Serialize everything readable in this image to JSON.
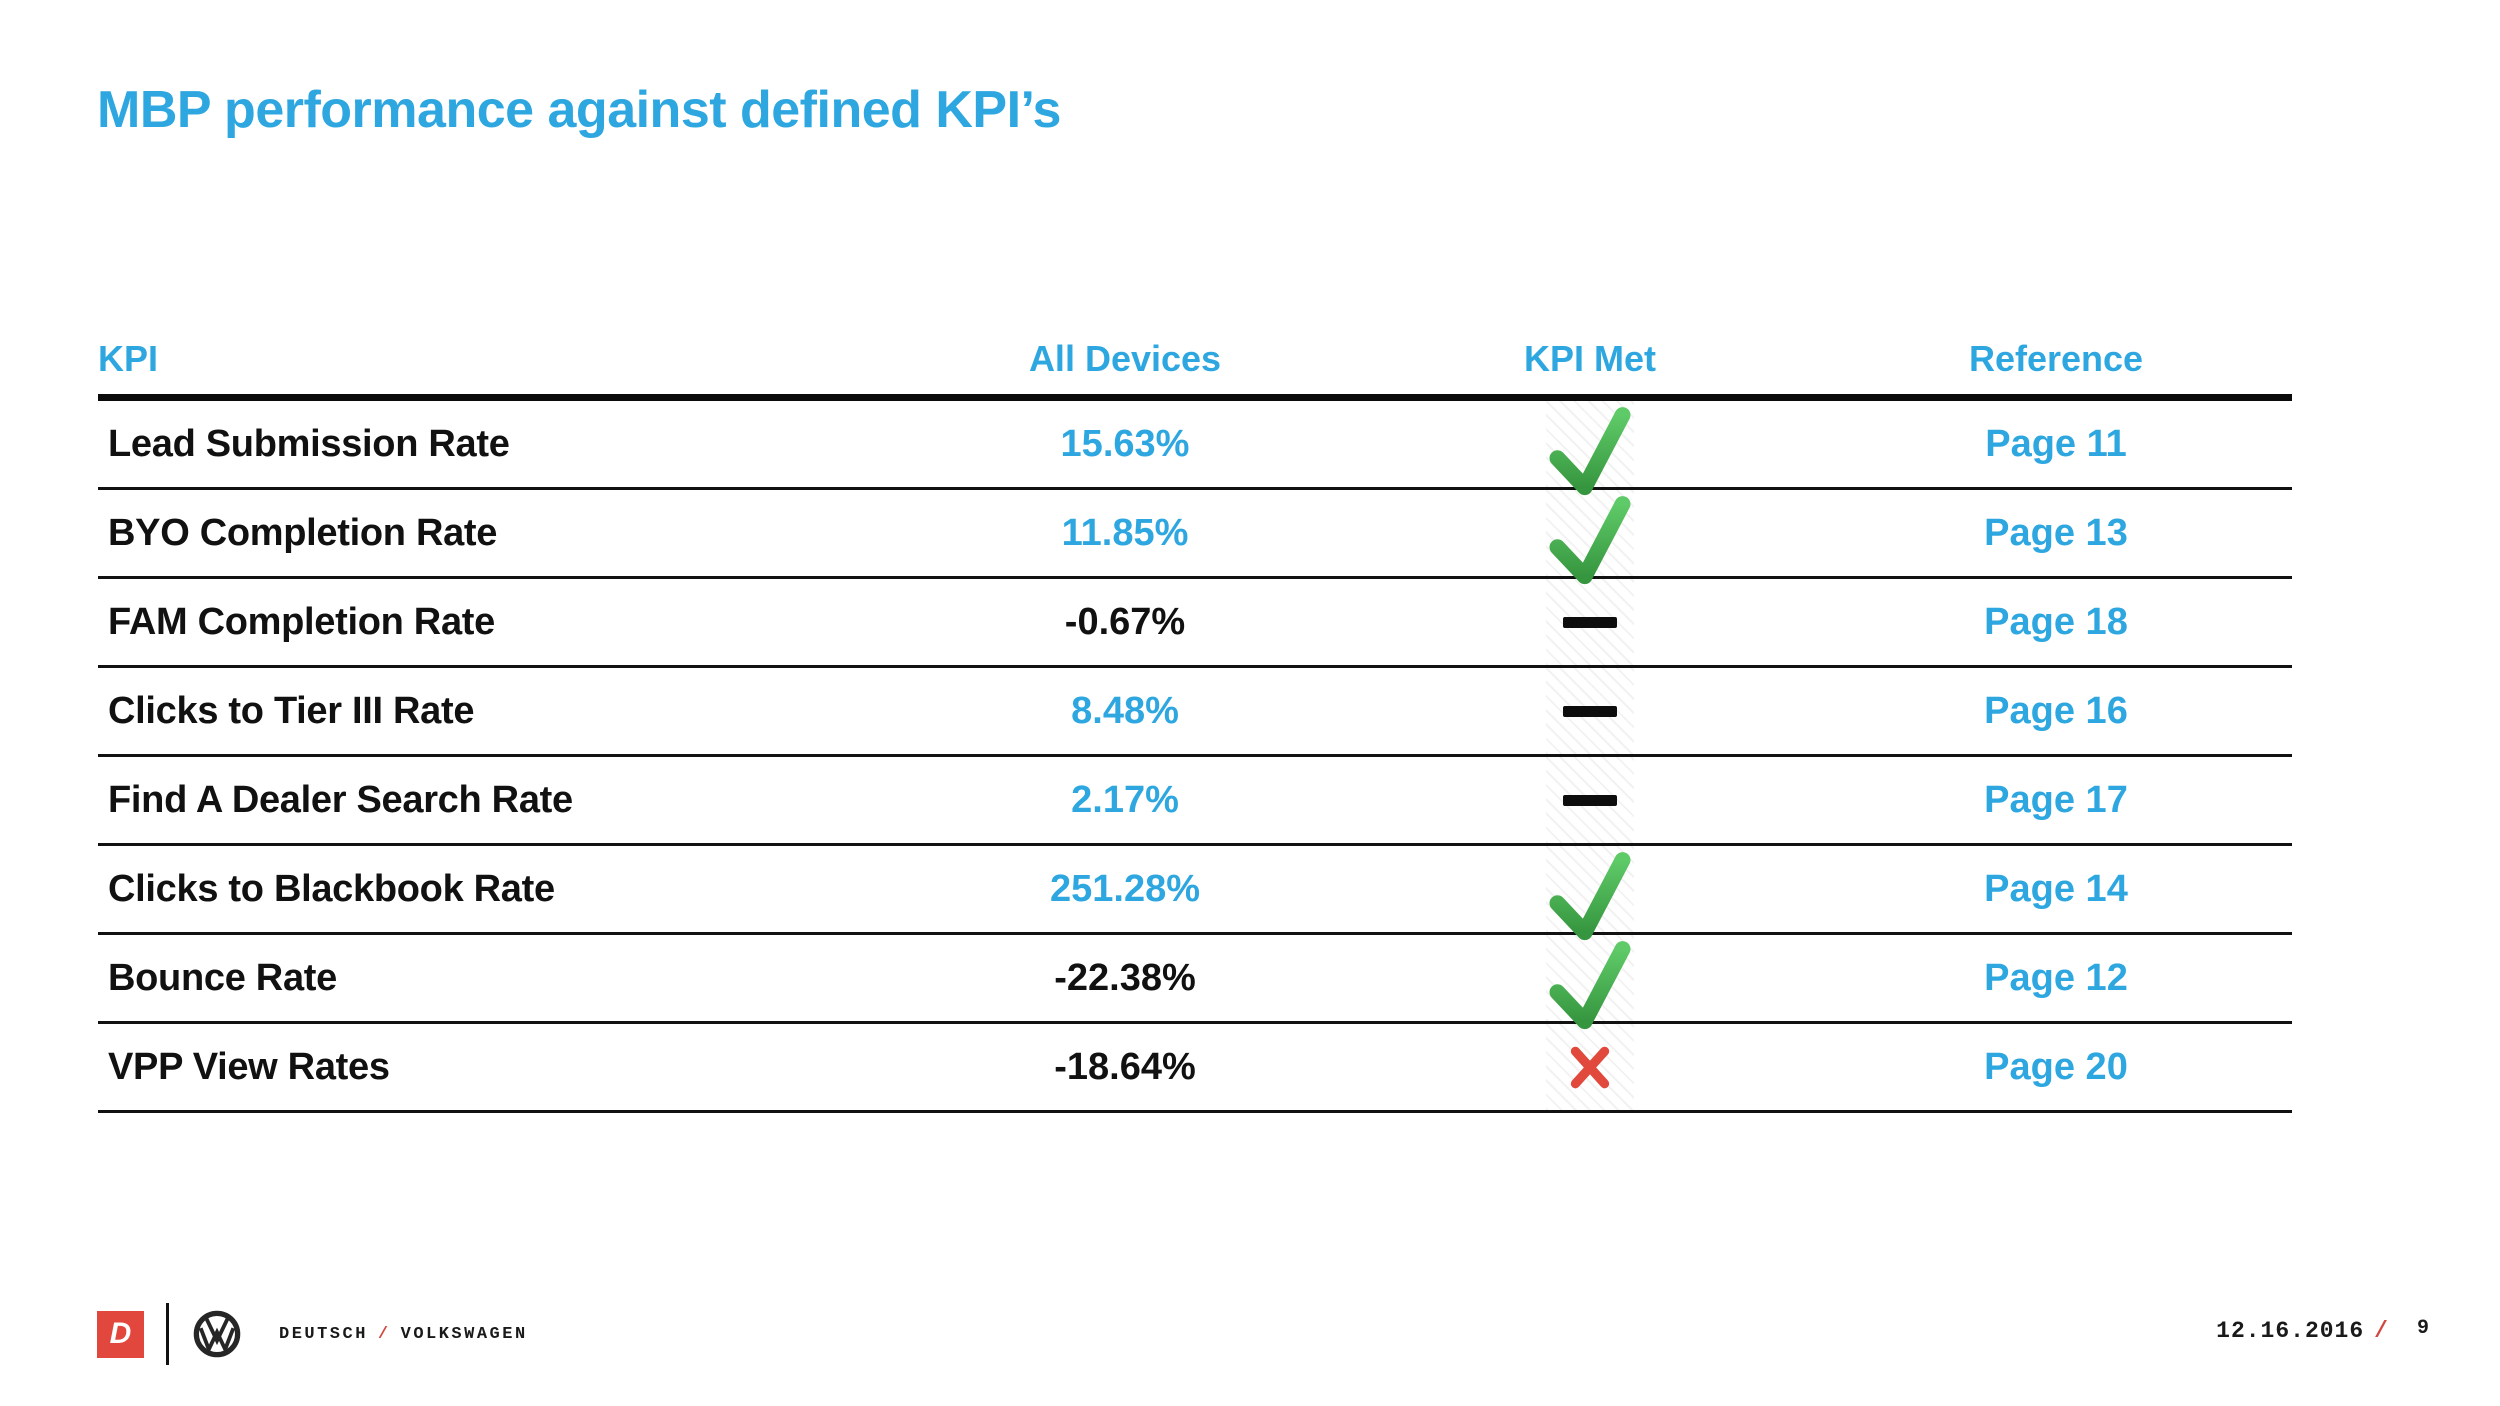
{
  "palette": {
    "accent_blue": "#2EA7E0",
    "text_dark": "#111111",
    "check_green_light": "#5FCA68",
    "check_green_dark": "#36963F",
    "x_red": "#E0493C",
    "logo_red": "#E2473E",
    "separator_red": "#D2473F"
  },
  "header": {
    "title": "MBP performance against defined KPI’s"
  },
  "table": {
    "columns": [
      {
        "label": "KPI"
      },
      {
        "label": "All Devices"
      },
      {
        "label": "KPI Met"
      },
      {
        "label": "Reference"
      }
    ],
    "rows": [
      {
        "kpi": "Lead Submission Rate",
        "all_devices": "15.63%",
        "value_style": "blue",
        "kpi_met_icon": "check-icon",
        "reference": "Page 11"
      },
      {
        "kpi": "BYO Completion Rate",
        "all_devices": "11.85%",
        "value_style": "blue",
        "kpi_met_icon": "check-icon",
        "reference": "Page 13"
      },
      {
        "kpi": "FAM Completion Rate",
        "all_devices": "-0.67%",
        "value_style": "dark",
        "kpi_met_icon": "dash-icon",
        "reference": "Page 18"
      },
      {
        "kpi": "Clicks to Tier III Rate",
        "all_devices": "8.48%",
        "value_style": "blue",
        "kpi_met_icon": "dash-icon",
        "reference": "Page 16"
      },
      {
        "kpi": "Find A Dealer Search Rate",
        "all_devices": "2.17%",
        "value_style": "blue",
        "kpi_met_icon": "dash-icon",
        "reference": "Page 17"
      },
      {
        "kpi": "Clicks to Blackbook Rate",
        "all_devices": "251.28%",
        "value_style": "blue",
        "kpi_met_icon": "check-icon",
        "reference": "Page 14"
      },
      {
        "kpi": "Bounce Rate",
        "all_devices": "-22.38%",
        "value_style": "dark",
        "kpi_met_icon": "check-icon",
        "reference": "Page 12"
      },
      {
        "kpi": "VPP View Rates",
        "all_devices": "-18.64%",
        "value_style": "dark",
        "kpi_met_icon": "x-icon",
        "reference": "Page 20"
      }
    ]
  },
  "footer": {
    "deutsch_logo_letter": "D",
    "brand_left": "DEUTSCH",
    "brand_separator": "/",
    "brand_right": "VOLKSWAGEN",
    "date": "12.16.2016",
    "date_separator": "/",
    "page_number": "9"
  }
}
